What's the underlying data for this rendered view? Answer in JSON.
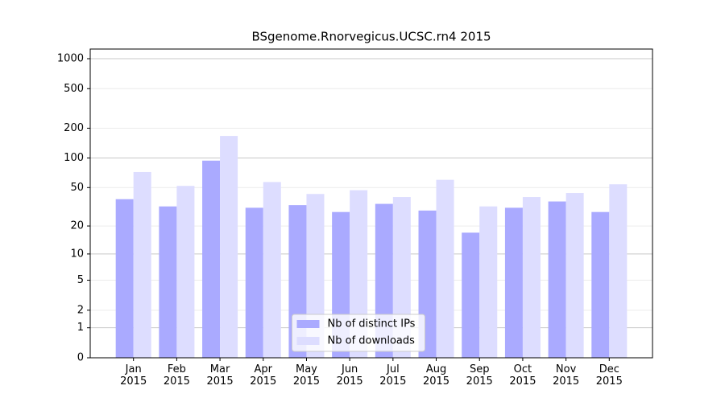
{
  "chart_data": {
    "type": "bar",
    "title": "BSgenome.Rnorvegicus.UCSC.rn4 2015",
    "categories": [
      "Jan 2015",
      "Feb 2015",
      "Mar 2015",
      "Apr 2015",
      "May 2015",
      "Jun 2015",
      "Jul 2015",
      "Aug 2015",
      "Sep 2015",
      "Oct 2015",
      "Nov 2015",
      "Dec 2015"
    ],
    "series": [
      {
        "name": "Nb of distinct IPs",
        "color": "#aaaaff",
        "values": [
          38,
          32,
          94,
          31,
          33,
          28,
          34,
          29,
          17,
          31,
          36,
          28
        ]
      },
      {
        "name": "Nb of downloads",
        "color": "#ddddff",
        "values": [
          72,
          52,
          167,
          57,
          43,
          47,
          40,
          60,
          32,
          40,
          44,
          54
        ]
      }
    ],
    "y_scale": "log1p",
    "ylim": [
      0,
      1250
    ],
    "yticks": [
      0,
      1,
      2,
      5,
      10,
      20,
      50,
      100,
      200,
      500,
      1000
    ],
    "grid": true,
    "legend_position": "lower center"
  }
}
